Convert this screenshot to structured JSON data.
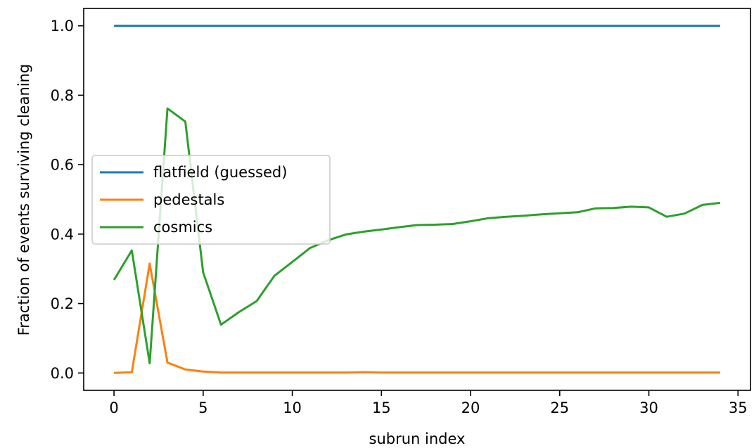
{
  "chart_data": {
    "type": "line",
    "xlabel": "subrun index",
    "ylabel": "Fraction of events surviving cleaning",
    "xlim": [
      -1.7,
      35.7
    ],
    "ylim": [
      -0.05,
      1.05
    ],
    "xticks": [
      0,
      5,
      10,
      15,
      20,
      25,
      30,
      35
    ],
    "yticks": [
      0.0,
      0.2,
      0.4,
      0.6,
      0.8,
      1.0
    ],
    "xtick_labels": [
      "0",
      "5",
      "10",
      "15",
      "20",
      "25",
      "30",
      "35"
    ],
    "ytick_labels": [
      "0.0",
      "0.2",
      "0.4",
      "0.6",
      "0.8",
      "1.0"
    ],
    "grid": false,
    "legend_position": "center-left",
    "x": [
      0,
      1,
      2,
      3,
      4,
      5,
      6,
      7,
      8,
      9,
      10,
      11,
      12,
      13,
      14,
      15,
      16,
      17,
      18,
      19,
      20,
      21,
      22,
      23,
      24,
      25,
      26,
      27,
      28,
      29,
      30,
      31,
      32,
      33,
      34
    ],
    "series": [
      {
        "name": "flatfield (guessed)",
        "color": "#1f77b4",
        "values": [
          1,
          1,
          1,
          1,
          1,
          1,
          1,
          1,
          1,
          1,
          1,
          1,
          1,
          1,
          1,
          1,
          1,
          1,
          1,
          1,
          1,
          1,
          1,
          1,
          1,
          1,
          1,
          1,
          1,
          1,
          1,
          1,
          1,
          1,
          1
        ]
      },
      {
        "name": "pedestals",
        "color": "#ff7f0e",
        "values": [
          0.0,
          0.002,
          0.315,
          0.03,
          0.01,
          0.004,
          0.001,
          0.001,
          0.001,
          0.001,
          0.001,
          0.001,
          0.001,
          0.001,
          0.002,
          0.001,
          0.001,
          0.001,
          0.001,
          0.001,
          0.001,
          0.001,
          0.001,
          0.001,
          0.001,
          0.001,
          0.001,
          0.001,
          0.001,
          0.001,
          0.001,
          0.001,
          0.001,
          0.001,
          0.001
        ]
      },
      {
        "name": "cosmics",
        "color": "#2ca02c",
        "values": [
          0.268,
          0.353,
          0.028,
          0.762,
          0.724,
          0.29,
          0.139,
          0.175,
          0.207,
          0.28,
          0.32,
          0.36,
          0.382,
          0.399,
          0.407,
          0.413,
          0.42,
          0.426,
          0.427,
          0.429,
          0.437,
          0.446,
          0.45,
          0.453,
          0.457,
          0.46,
          0.463,
          0.474,
          0.475,
          0.479,
          0.477,
          0.45,
          0.459,
          0.484,
          0.49
        ]
      }
    ]
  }
}
